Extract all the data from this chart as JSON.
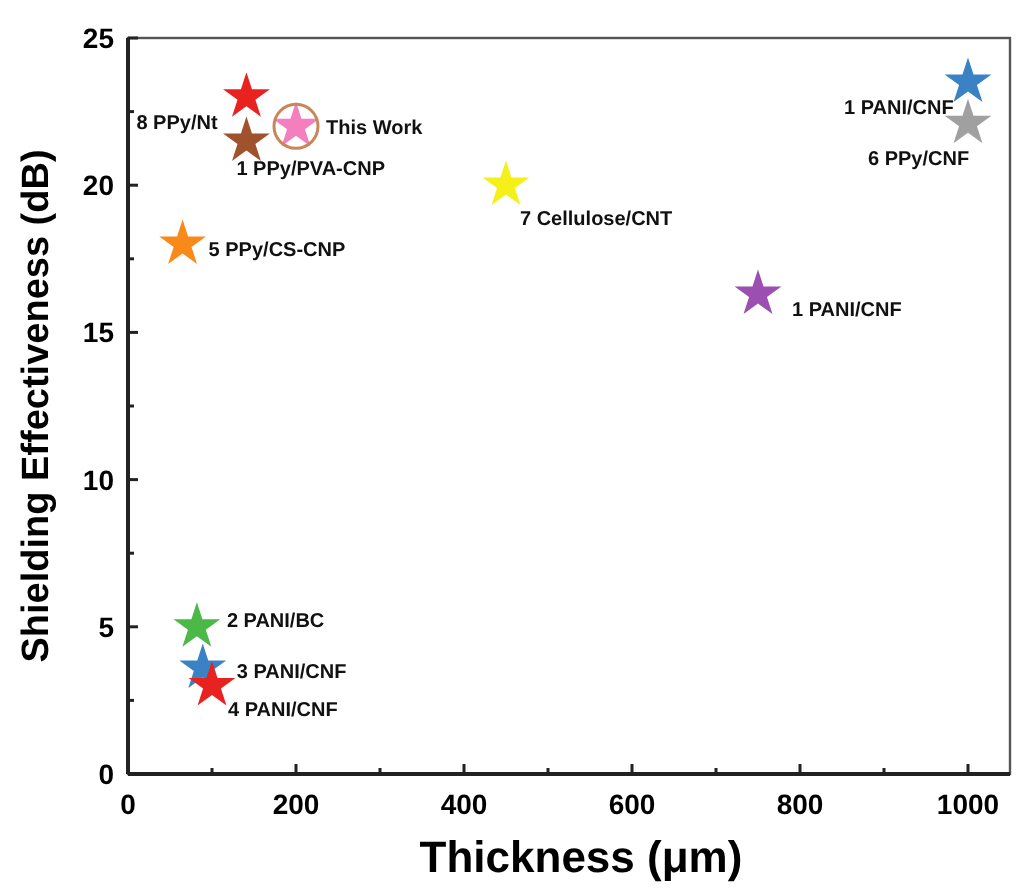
{
  "chart_data": {
    "type": "scatter",
    "xlabel": "Thickness (μm)",
    "ylabel": "Shielding Effectiveness (dB)",
    "marker": "star",
    "grid": false,
    "x": [
      141,
      141,
      200,
      450,
      65,
      1000,
      1000,
      750,
      82,
      89,
      100
    ],
    "values": [
      23.0,
      21.5,
      22.0,
      20.0,
      18.0,
      23.5,
      22.1,
      16.3,
      5.0,
      3.6,
      3.0
    ],
    "colors": [
      "#e8231f",
      "#a0522d",
      "#f47fbe",
      "#f5f019",
      "#f98a1a",
      "#3a82c4",
      "#a0a0a0",
      "#9b4fb0",
      "#4cb848",
      "#3a82c4",
      "#e8231f"
    ],
    "xlim": [
      0,
      1050
    ],
    "xticks": [
      0,
      {
        "value": 100,
        "label": null
      },
      200,
      {
        "value": 300,
        "label": null
      },
      400,
      {
        "value": 500,
        "label": null
      },
      600,
      {
        "value": 700,
        "label": null
      },
      800,
      {
        "value": 900,
        "label": null
      },
      1000
    ],
    "ylim": [
      0,
      25
    ],
    "yticks": [
      0,
      {
        "value": 2.5,
        "label": null
      },
      5,
      {
        "value": 7.5,
        "label": null
      },
      10,
      {
        "value": 12.5,
        "label": null
      },
      15,
      {
        "value": 17.5,
        "label": null
      },
      20,
      {
        "value": 22.5,
        "label": null
      },
      25
    ],
    "annotations": [
      {
        "text": "8 PPy/Nt",
        "x": 141,
        "y": 23.0
      },
      {
        "text": "1 PPy/PVA-CNP",
        "x": 141,
        "y": 21.5
      },
      {
        "text": "This Work",
        "x": 200,
        "y": 22.0
      },
      {
        "text": "7 Cellulose/CNT",
        "x": 450,
        "y": 20.0
      },
      {
        "text": "5 PPy/CS-CNP",
        "x": 65,
        "y": 18.0
      },
      {
        "text": "1 PANI/CNF",
        "x": 1000,
        "y": 23.5
      },
      {
        "text": "6 PPy/CNF",
        "x": 1000,
        "y": 22.1
      },
      {
        "text": "1 PANI/CNF",
        "x": 750,
        "y": 16.3
      },
      {
        "text": "2 PANI/BC",
        "x": 82,
        "y": 5.0
      },
      {
        "text": "3 PANI/CNF",
        "x": 89,
        "y": 3.6
      },
      {
        "text": "4 PANI/CNF",
        "x": 100,
        "y": 3.0
      }
    ]
  }
}
